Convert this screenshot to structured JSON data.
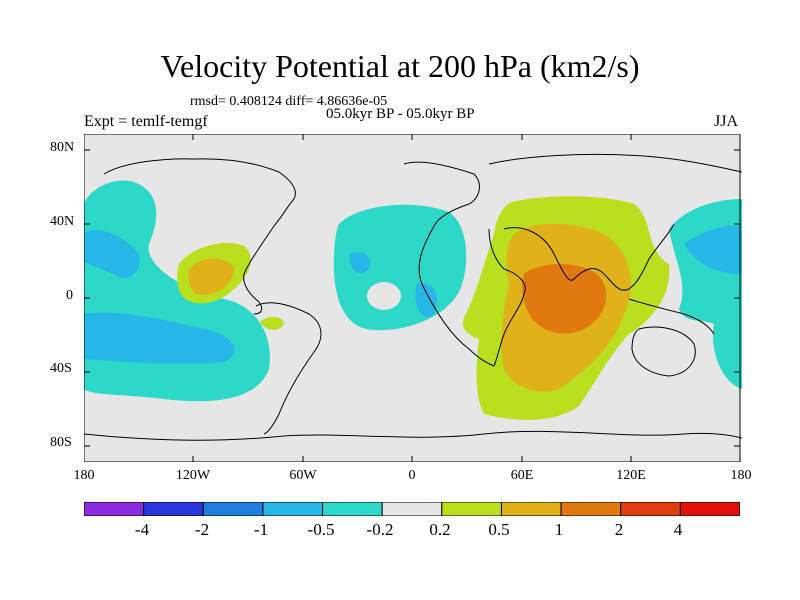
{
  "title": "Velocity Potential at 200 hPa (km2/s)",
  "stats": "rmsd= 0.408124 diff= 4.86636e-05",
  "period": "05.0kyr BP - 05.0kyr BP",
  "expt": "Expt = temlf-temgf",
  "season": "JJA",
  "y_ticks": [
    "80N",
    "40N",
    "0",
    "40S",
    "80S"
  ],
  "x_ticks": [
    "180",
    "120W",
    "60W",
    "0",
    "60E",
    "120E",
    "180"
  ],
  "colorbar": {
    "colors": [
      "#8a2be2",
      "#2a35e0",
      "#1f7fe0",
      "#27b7e6",
      "#2ed8c8",
      "#e6e6e6",
      "#b9df1e",
      "#e0b21a",
      "#e07a10",
      "#e03e0a",
      "#e0100a"
    ],
    "labels": [
      "-4",
      "-2",
      "-1",
      "-0.5",
      "-0.2",
      "0.2",
      "0.5",
      "1",
      "2",
      "4"
    ]
  },
  "colors": {
    "land_background": "#e6e6e6",
    "cyan_fill": "#2ed8c8",
    "blue_fill": "#27b7e6",
    "yellow_fill": "#b9df1e",
    "orange_fill": "#e0b21a",
    "dark_orange_fill": "#e07a10"
  }
}
